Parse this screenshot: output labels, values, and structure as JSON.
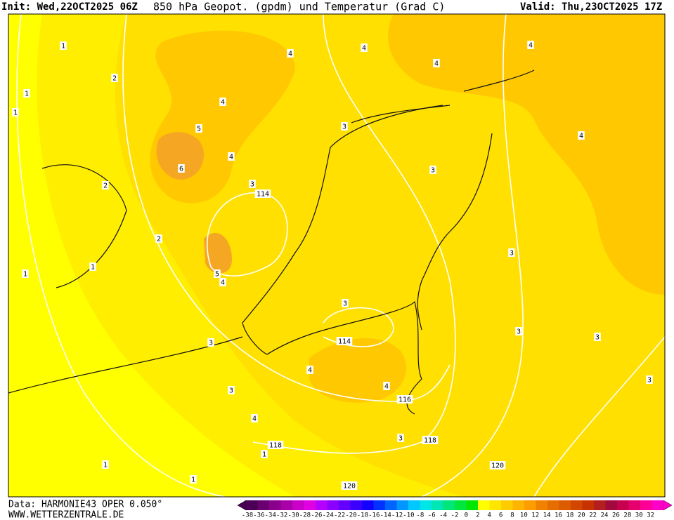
{
  "header": {
    "init": "Init: Wed,22OCT2025 06Z",
    "title": "850 hPa Geopot. (gpdm) und Temperatur (Grad C)",
    "valid": "Valid: Thu,23OCT2025 17Z"
  },
  "footer": {
    "data": "Data: HARMONIE43 OPER 0.050°",
    "site": "WWW.WETTERZENTRALE.DE"
  },
  "legend": {
    "values": [
      -38,
      -36,
      -34,
      -32,
      -30,
      -28,
      -26,
      -24,
      -22,
      -20,
      -18,
      -16,
      -14,
      -12,
      -10,
      -8,
      -6,
      -4,
      -2,
      0,
      2,
      4,
      6,
      8,
      10,
      12,
      14,
      16,
      18,
      20,
      22,
      24,
      26,
      28,
      30,
      32
    ],
    "colors": [
      "#4b0055",
      "#6a006f",
      "#8a008c",
      "#a900aa",
      "#c800c8",
      "#e100e1",
      "#b400ff",
      "#8c00ff",
      "#6400ff",
      "#3c00ff",
      "#1400ff",
      "#0032ff",
      "#0064ff",
      "#0096ff",
      "#00c8ff",
      "#00e6e6",
      "#00e6b4",
      "#00e678",
      "#00e63c",
      "#00e600",
      "#ffff00",
      "#ffe600",
      "#ffcc00",
      "#ffb400",
      "#ff9c00",
      "#f08200",
      "#e66e00",
      "#dc5a00",
      "#d24600",
      "#c83200",
      "#b41e1e",
      "#a00a3c",
      "#c80050",
      "#e6006e",
      "#ff0096",
      "#ff00c8"
    ]
  },
  "map": {
    "temperature_labels": [
      1,
      1,
      1,
      2,
      2,
      2,
      1,
      1,
      3,
      3,
      4,
      4,
      4,
      3,
      3,
      3,
      3,
      3,
      3,
      3,
      3,
      3,
      4,
      4,
      4,
      4,
      4,
      4,
      4,
      4,
      5,
      6,
      5,
      1,
      1,
      1
    ],
    "height_labels": [
      114,
      114,
      116,
      118,
      118,
      120,
      120
    ]
  }
}
